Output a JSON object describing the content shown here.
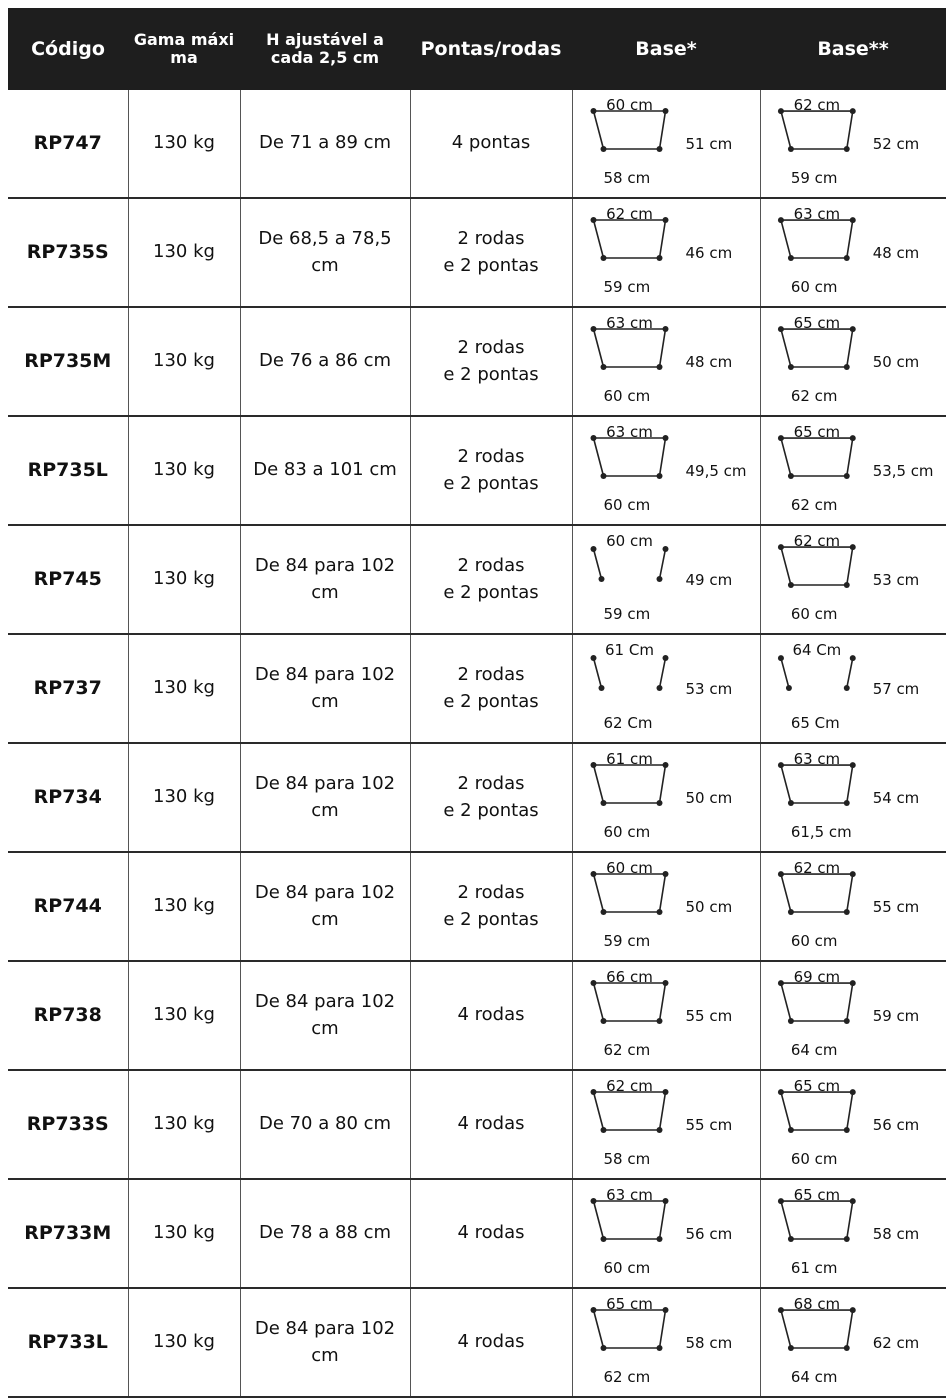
{
  "headers": {
    "code": "Código",
    "max_range": "Gama máxi ma",
    "height": "H ajustável a cada 2,5 cm",
    "tips_wheels": "Pontas/rodas",
    "base1": "Base*",
    "base2": "Base**"
  },
  "rows": [
    {
      "code": "RP747",
      "max": "130 kg",
      "height": "De 71 a 89 cm",
      "type_line1": "4 pontas",
      "type_line2": "",
      "b1": {
        "top": "60 cm",
        "side": "51 cm",
        "bottom": "58 cm"
      },
      "b2": {
        "top": "62 cm",
        "side": "52 cm",
        "bottom": "59 cm"
      }
    },
    {
      "code": "RP735S",
      "max": "130 kg",
      "height": "De 68,5 a 78,5 cm",
      "type_line1": "2 rodas",
      "type_line2": "e 2 pontas",
      "b1": {
        "top": "62 cm",
        "side": "46 cm",
        "bottom": "59 cm"
      },
      "b2": {
        "top": "63 cm",
        "side": "48 cm",
        "bottom": "60 cm"
      }
    },
    {
      "code": "RP735M",
      "max": "130 kg",
      "height": "De 76 a 86 cm",
      "type_line1": "2 rodas",
      "type_line2": "e 2 pontas",
      "b1": {
        "top": "63 cm",
        "side": "48 cm",
        "bottom": "60 cm"
      },
      "b2": {
        "top": "65 cm",
        "side": "50 cm",
        "bottom": "62 cm"
      }
    },
    {
      "code": "RP735L",
      "max": "130 kg",
      "height": "De 83 a 101 cm",
      "type_line1": "2 rodas",
      "type_line2": "e 2 pontas",
      "b1": {
        "top": "63 cm",
        "side": "49,5 cm",
        "bottom": "60 cm"
      },
      "b2": {
        "top": "65 cm",
        "side": "53,5 cm",
        "bottom": "62 cm"
      }
    },
    {
      "code": "RP745",
      "max": "130 kg",
      "height": "De 84 para 102 cm",
      "type_line1": "2 rodas",
      "type_line2": "e 2 pontas",
      "b1": {
        "top": "60 cm",
        "side": "49 cm",
        "bottom": "59 cm"
      },
      "b2": {
        "top": "62 cm",
        "side": "53 cm",
        "bottom": "60 cm"
      }
    },
    {
      "code": "RP737",
      "max": "130 kg",
      "height": "De 84 para 102 cm",
      "type_line1": "2 rodas",
      "type_line2": "e 2 pontas",
      "b1": {
        "top": "61 Cm",
        "side": "53 cm",
        "bottom": "62 Cm"
      },
      "b2": {
        "top": "64 Cm",
        "side": "57 cm",
        "bottom": "65 Cm"
      }
    },
    {
      "code": "RP734",
      "max": "130 kg",
      "height": "De 84 para 102 cm",
      "type_line1": "2 rodas",
      "type_line2": "e 2 pontas",
      "b1": {
        "top": "61 cm",
        "side": "50 cm",
        "bottom": "60 cm"
      },
      "b2": {
        "top": "63 cm",
        "side": "54 cm",
        "bottom": "61,5 cm"
      }
    },
    {
      "code": "RP744",
      "max": "130 kg",
      "height": "De 84 para 102 cm",
      "type_line1": "2 rodas",
      "type_line2": "e 2 pontas",
      "b1": {
        "top": "60 cm",
        "side": "50 cm",
        "bottom": "59 cm"
      },
      "b2": {
        "top": "62 cm",
        "side": "55 cm",
        "bottom": "60 cm"
      }
    },
    {
      "code": "RP738",
      "max": "130 kg",
      "height": "De 84 para 102 cm",
      "type_line1": "4 rodas",
      "type_line2": "",
      "b1": {
        "top": "66 cm",
        "side": "55 cm",
        "bottom": "62 cm"
      },
      "b2": {
        "top": "69 cm",
        "side": "59 cm",
        "bottom": "64 cm"
      }
    },
    {
      "code": "RP733S",
      "max": "130 kg",
      "height": "De 70 a 80 cm",
      "type_line1": "4 rodas",
      "type_line2": "",
      "b1": {
        "top": "62 cm",
        "side": "55 cm",
        "bottom": "58 cm"
      },
      "b2": {
        "top": "65 cm",
        "side": "56 cm",
        "bottom": "60 cm"
      }
    },
    {
      "code": "RP733M",
      "max": "130 kg",
      "height": "De 78 a 88 cm",
      "type_line1": "4 rodas",
      "type_line2": "",
      "b1": {
        "top": "63 cm",
        "side": "56 cm",
        "bottom": "60 cm"
      },
      "b2": {
        "top": "65 cm",
        "side": "58 cm",
        "bottom": "61 cm"
      }
    },
    {
      "code": "RP733L",
      "max": "130 kg",
      "height": "De 84 para 102 cm",
      "type_line1": "4 rodas",
      "type_line2": "",
      "b1": {
        "top": "65 cm",
        "side": "58 cm",
        "bottom": "62 cm"
      },
      "b2": {
        "top": "68 cm",
        "side": "62 cm",
        "bottom": "64 cm"
      }
    }
  ]
}
